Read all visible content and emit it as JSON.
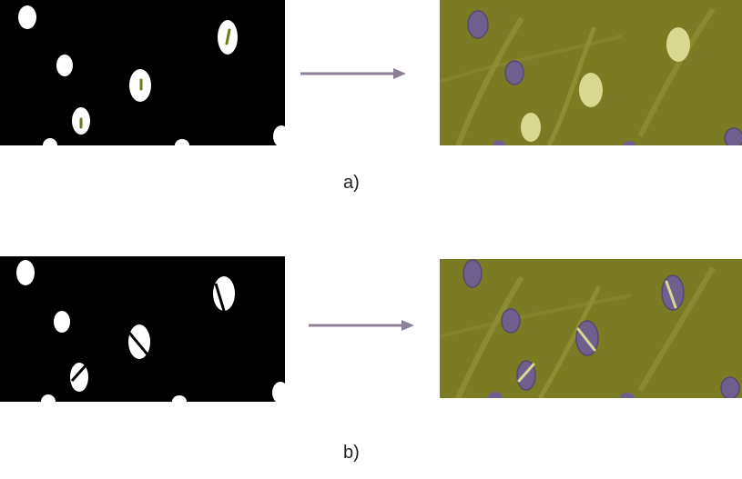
{
  "figure": {
    "rows": [
      {
        "id": "a",
        "caption": "a)"
      },
      {
        "id": "b",
        "caption": "b)"
      }
    ],
    "colors": {
      "mask_background": "#000000",
      "mask_cell": "#ffffff",
      "marker_line": "#6e7a1e",
      "tissue_background": "#7b7b24",
      "tissue_highlight": "#a7a74a",
      "cell_purple": "#6f5f8f",
      "cell_yellow": "#d8d890",
      "arrow": "#8c8196"
    }
  }
}
